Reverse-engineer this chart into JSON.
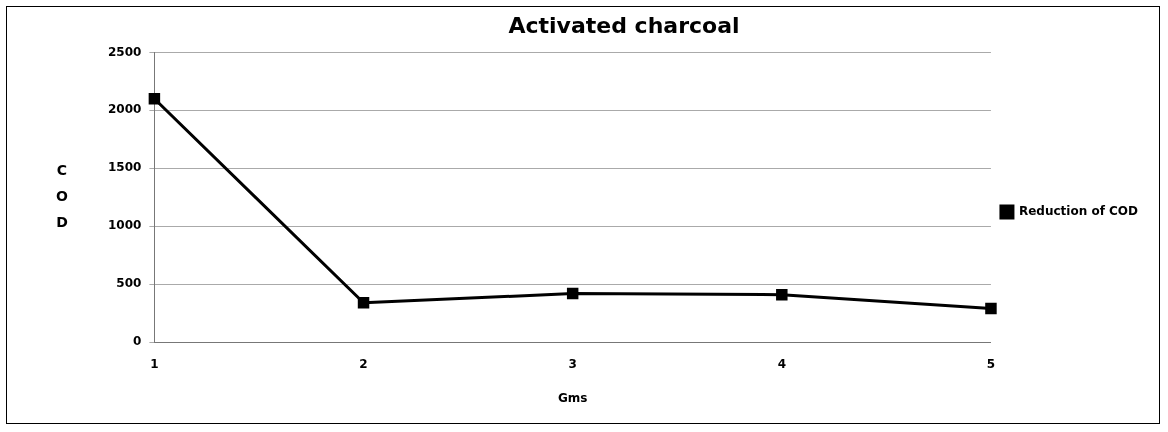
{
  "chart_data": {
    "type": "line",
    "title": "Activated charcoal",
    "xlabel": "Gms",
    "ylabel": "C\nO\nD",
    "categories": [
      "1",
      "2",
      "3",
      "4",
      "5"
    ],
    "series": [
      {
        "name": "Reduction of COD",
        "color": "#000000",
        "values": [
          2100,
          340,
          420,
          410,
          290
        ]
      }
    ],
    "ylim": [
      0,
      2500
    ],
    "yticks": [
      0,
      500,
      1000,
      1500,
      2000,
      2500
    ],
    "grid": "y",
    "legend": "right",
    "marker": "square",
    "line_style": "solid"
  }
}
